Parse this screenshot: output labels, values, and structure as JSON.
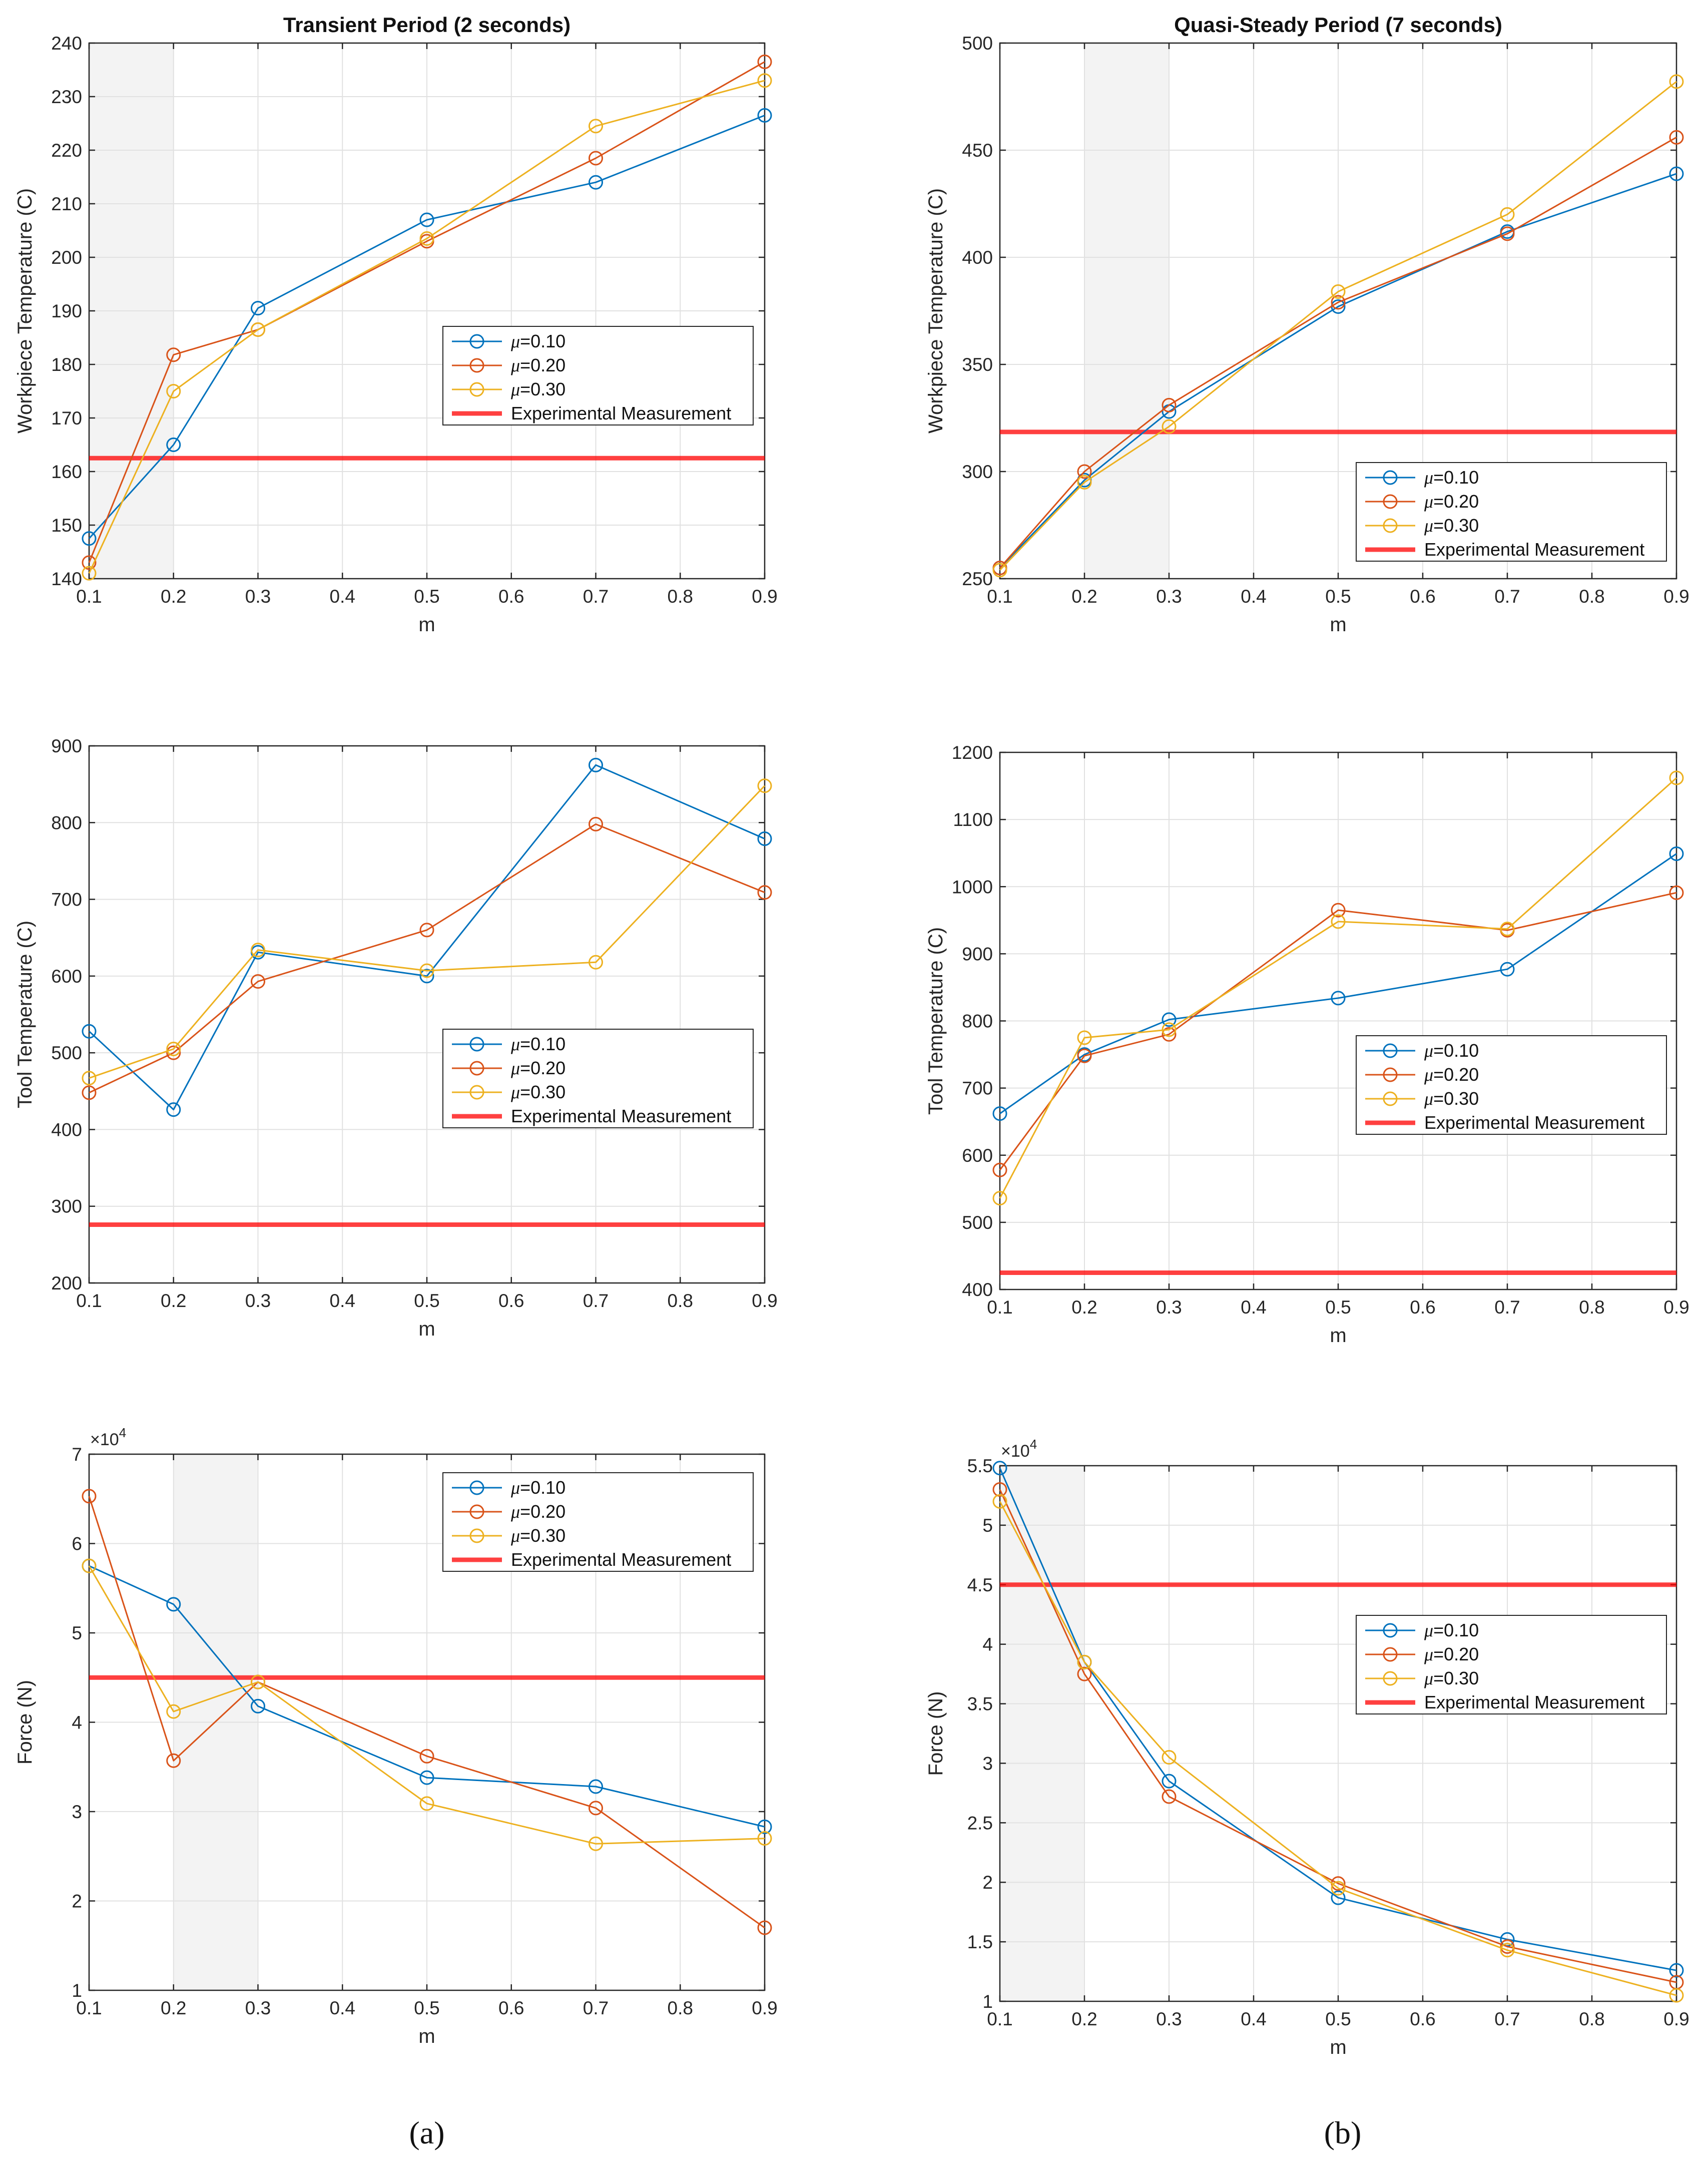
{
  "chart_data": [
    {
      "id": "a1",
      "type": "line",
      "title": "Transient Period (2 seconds)",
      "xlabel": "m",
      "ylabel": "Workpiece Temperature (C)",
      "x": [
        0.1,
        0.2,
        0.3,
        0.5,
        0.7,
        0.9
      ],
      "xlim": [
        0.1,
        0.9
      ],
      "xticks": [
        0.1,
        0.2,
        0.3,
        0.4,
        0.5,
        0.6,
        0.7,
        0.8,
        0.9
      ],
      "ylim": [
        140,
        240
      ],
      "yticks": [
        140,
        150,
        160,
        170,
        180,
        190,
        200,
        210,
        220,
        230,
        240
      ],
      "exponent": "",
      "shaded_x": [
        0.1,
        0.2
      ],
      "series": [
        {
          "name": "μ=0.10",
          "mu_value": "0.10",
          "color": "#0072BD",
          "values": [
            147.5,
            165,
            190.5,
            207,
            214,
            226.5
          ]
        },
        {
          "name": "μ=0.20",
          "mu_value": "0.20",
          "color": "#D95319",
          "values": [
            143,
            181.8,
            186.5,
            203,
            218.5,
            236.5
          ]
        },
        {
          "name": "μ=0.30",
          "mu_value": "0.30",
          "color": "#EDB120",
          "values": [
            141,
            175,
            186.5,
            203.5,
            224.5,
            233
          ]
        }
      ],
      "experimental": {
        "name": "Experimental Measurement",
        "value": 162.5,
        "color": "#FF0000"
      },
      "legend_position": "middle-right"
    },
    {
      "id": "b1",
      "type": "line",
      "title": "Quasi-Steady Period (7 seconds)",
      "xlabel": "m",
      "ylabel": "Workpiece Temperature (C)",
      "x": [
        0.1,
        0.2,
        0.3,
        0.5,
        0.7,
        0.9
      ],
      "xlim": [
        0.1,
        0.9
      ],
      "xticks": [
        0.1,
        0.2,
        0.3,
        0.4,
        0.5,
        0.6,
        0.7,
        0.8,
        0.9
      ],
      "ylim": [
        250,
        500
      ],
      "yticks": [
        250,
        300,
        350,
        400,
        450,
        500
      ],
      "exponent": "",
      "shaded_x": [
        0.2,
        0.3
      ],
      "series": [
        {
          "name": "μ=0.10",
          "mu_value": "0.10",
          "color": "#0072BD",
          "values": [
            255,
            296,
            328,
            377,
            412,
            439
          ]
        },
        {
          "name": "μ=0.20",
          "mu_value": "0.20",
          "color": "#D95319",
          "values": [
            255,
            300,
            331,
            379,
            411,
            456
          ]
        },
        {
          "name": "μ=0.30",
          "mu_value": "0.30",
          "color": "#EDB120",
          "values": [
            254,
            295,
            321,
            384,
            420,
            482
          ]
        }
      ],
      "experimental": {
        "name": "Experimental Measurement",
        "value": 318.5,
        "color": "#FF0000"
      },
      "legend_position": "bottom-right"
    },
    {
      "id": "a2",
      "type": "line",
      "title": "",
      "xlabel": "m",
      "ylabel": "Tool Temperature (C)",
      "x": [
        0.1,
        0.2,
        0.3,
        0.5,
        0.7,
        0.9
      ],
      "xlim": [
        0.1,
        0.9
      ],
      "xticks": [
        0.1,
        0.2,
        0.3,
        0.4,
        0.5,
        0.6,
        0.7,
        0.8,
        0.9
      ],
      "ylim": [
        200,
        900
      ],
      "yticks": [
        200,
        300,
        400,
        500,
        600,
        700,
        800,
        900
      ],
      "exponent": "",
      "shaded_x": null,
      "series": [
        {
          "name": "μ=0.10",
          "mu_value": "0.10",
          "color": "#0072BD",
          "values": [
            528,
            426,
            631,
            600,
            875,
            779
          ]
        },
        {
          "name": "μ=0.20",
          "mu_value": "0.20",
          "color": "#D95319",
          "values": [
            448,
            500,
            593,
            660,
            798,
            709
          ]
        },
        {
          "name": "μ=0.30",
          "mu_value": "0.30",
          "color": "#EDB120",
          "values": [
            467,
            505,
            634,
            607,
            618,
            848
          ]
        }
      ],
      "experimental": {
        "name": "Experimental Measurement",
        "value": 276,
        "color": "#FF0000"
      },
      "legend_position": "middle-right"
    },
    {
      "id": "b2",
      "type": "line",
      "title": "",
      "xlabel": "m",
      "ylabel": "Tool Temperature (C)",
      "x": [
        0.1,
        0.2,
        0.3,
        0.5,
        0.7,
        0.9
      ],
      "xlim": [
        0.1,
        0.9
      ],
      "xticks": [
        0.1,
        0.2,
        0.3,
        0.4,
        0.5,
        0.6,
        0.7,
        0.8,
        0.9
      ],
      "ylim": [
        400,
        1200
      ],
      "yticks": [
        400,
        500,
        600,
        700,
        800,
        900,
        1000,
        1100,
        1200
      ],
      "exponent": "",
      "shaded_x": null,
      "series": [
        {
          "name": "μ=0.10",
          "mu_value": "0.10",
          "color": "#0072BD",
          "values": [
            662,
            750,
            802,
            834,
            877,
            1049
          ]
        },
        {
          "name": "μ=0.20",
          "mu_value": "0.20",
          "color": "#D95319",
          "values": [
            578,
            748,
            780,
            965,
            935,
            991
          ]
        },
        {
          "name": "μ=0.30",
          "mu_value": "0.30",
          "color": "#EDB120",
          "values": [
            536,
            775,
            787,
            948,
            937,
            1162
          ]
        }
      ],
      "experimental": {
        "name": "Experimental Measurement",
        "value": 425,
        "color": "#FF0000"
      },
      "legend_position": "middle-right"
    },
    {
      "id": "a3",
      "type": "line",
      "title": "",
      "xlabel": "m",
      "ylabel": "Force (N)",
      "x": [
        0.1,
        0.2,
        0.3,
        0.5,
        0.7,
        0.9
      ],
      "xlim": [
        0.1,
        0.9
      ],
      "xticks": [
        0.1,
        0.2,
        0.3,
        0.4,
        0.5,
        0.6,
        0.7,
        0.8,
        0.9
      ],
      "ylim": [
        1,
        7
      ],
      "yticks": [
        1,
        2,
        3,
        4,
        5,
        6,
        7
      ],
      "exponent": "4",
      "shaded_x": [
        0.2,
        0.3
      ],
      "series": [
        {
          "name": "μ=0.10",
          "mu_value": "0.10",
          "color": "#0072BD",
          "values": [
            5.75,
            5.32,
            4.18,
            3.38,
            3.28,
            2.83
          ]
        },
        {
          "name": "μ=0.20",
          "mu_value": "0.20",
          "color": "#D95319",
          "values": [
            6.53,
            3.57,
            4.45,
            3.62,
            3.04,
            1.7
          ]
        },
        {
          "name": "μ=0.30",
          "mu_value": "0.30",
          "color": "#EDB120",
          "values": [
            5.75,
            4.12,
            4.45,
            3.09,
            2.64,
            2.7
          ]
        }
      ],
      "experimental": {
        "name": "Experimental Measurement",
        "value": 4.5,
        "color": "#FF0000"
      },
      "legend_position": "top-right"
    },
    {
      "id": "b3",
      "type": "line",
      "title": "",
      "xlabel": "m",
      "ylabel": "Force (N)",
      "x": [
        0.1,
        0.2,
        0.3,
        0.5,
        0.7,
        0.9
      ],
      "xlim": [
        0.1,
        0.9
      ],
      "xticks": [
        0.1,
        0.2,
        0.3,
        0.4,
        0.5,
        0.6,
        0.7,
        0.8,
        0.9
      ],
      "ylim": [
        1,
        5.5
      ],
      "yticks": [
        1,
        1.5,
        2,
        2.5,
        3,
        3.5,
        4,
        4.5,
        5,
        5.5
      ],
      "exponent": "4",
      "shaded_x": [
        0.1,
        0.2
      ],
      "series": [
        {
          "name": "μ=0.10",
          "mu_value": "0.10",
          "color": "#0072BD",
          "values": [
            5.48,
            3.85,
            2.85,
            1.87,
            1.52,
            1.26
          ]
        },
        {
          "name": "μ=0.20",
          "mu_value": "0.20",
          "color": "#D95319",
          "values": [
            5.3,
            3.75,
            2.72,
            1.99,
            1.46,
            1.16
          ]
        },
        {
          "name": "μ=0.30",
          "mu_value": "0.30",
          "color": "#EDB120",
          "values": [
            5.2,
            3.85,
            3.05,
            1.95,
            1.43,
            1.05
          ]
        }
      ],
      "experimental": {
        "name": "Experimental Measurement",
        "value": 4.5,
        "color": "#FF0000"
      },
      "legend_position": "middle-right"
    }
  ],
  "panel_labels": [
    "(a)",
    "(b)"
  ]
}
